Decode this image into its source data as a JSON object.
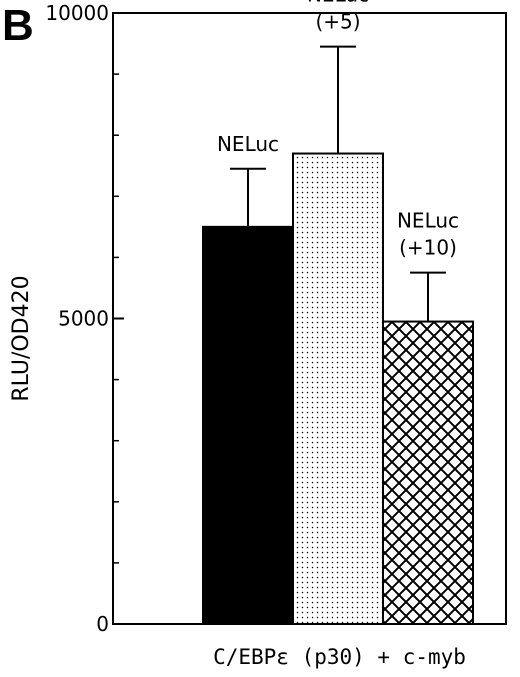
{
  "panel_label": "B",
  "chart_data": {
    "type": "bar",
    "ylabel": "RLU/OD420",
    "xlabel": "C/EBPε (p30) + c-myb",
    "ylim": [
      0,
      10000
    ],
    "yticks": [
      {
        "value": 0,
        "label": "0"
      },
      {
        "value": 5000,
        "label": "5000"
      },
      {
        "value": 10000,
        "label": "10000"
      }
    ],
    "minor_yticks": [
      1000,
      2000,
      3000,
      4000,
      6000,
      7000,
      8000,
      9000
    ],
    "grid": false,
    "bars": [
      {
        "label_lines": [
          "NELuc"
        ],
        "value": 6500,
        "error": 950,
        "fill": "solid",
        "color": "#000000"
      },
      {
        "label_lines": [
          "NELuc",
          "(+5)"
        ],
        "value": 7700,
        "error": 1750,
        "fill": "dots",
        "color": "#000000"
      },
      {
        "label_lines": [
          "NELuc",
          "(+10)"
        ],
        "value": 4950,
        "error": 800,
        "fill": "crosshatch",
        "color": "#000000"
      }
    ]
  }
}
